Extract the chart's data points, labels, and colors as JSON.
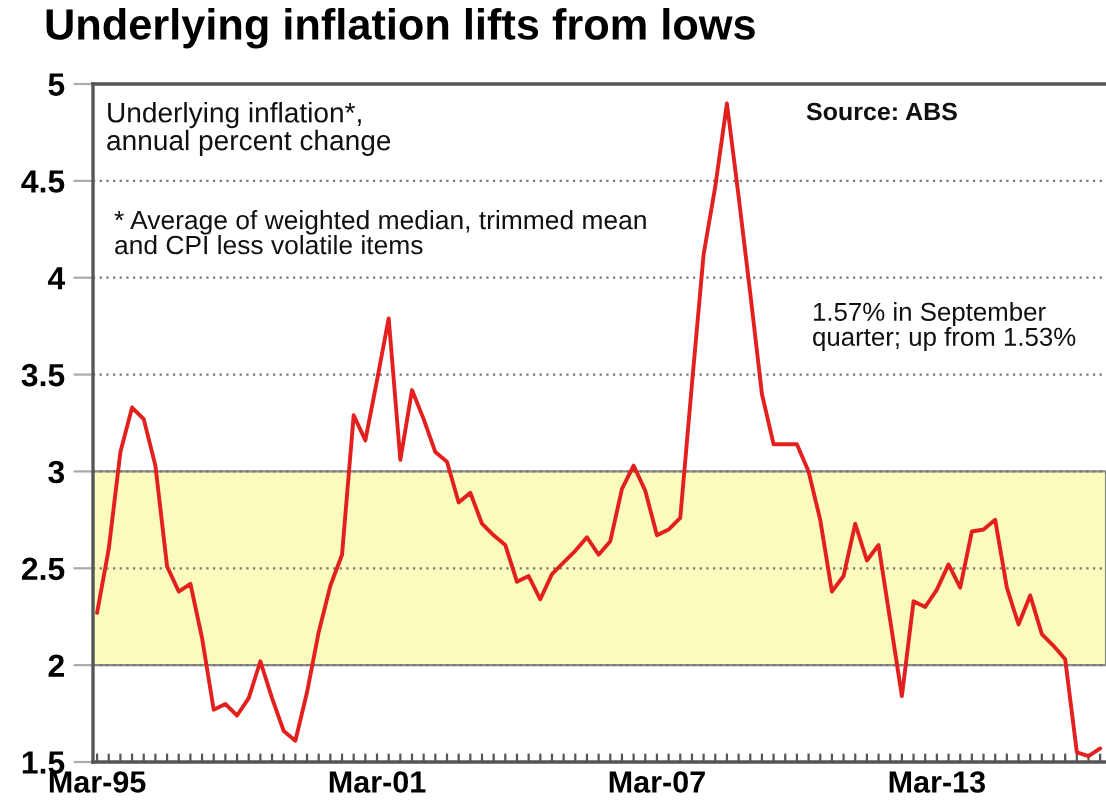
{
  "chart_data": {
    "type": "line",
    "title": "Underlying inflation lifts from lows",
    "annotations": [
      "Underlying inflation*,\nannual percent change",
      "* Average of weighted median, trimmed mean\nand CPI less volatile items",
      "Source: ABS",
      "1.57% in September\nquarter; up from 1.53%"
    ],
    "categories": [
      "Mar-95",
      null,
      null,
      null,
      null,
      null,
      null,
      null,
      null,
      null,
      null,
      null,
      null,
      null,
      null,
      null,
      null,
      null,
      null,
      null,
      null,
      null,
      null,
      null,
      "Mar-01",
      null,
      null,
      null,
      null,
      null,
      null,
      null,
      null,
      null,
      null,
      null,
      null,
      null,
      null,
      null,
      null,
      null,
      null,
      null,
      null,
      null,
      null,
      null,
      "Mar-07",
      null,
      null,
      null,
      null,
      null,
      null,
      null,
      null,
      null,
      null,
      null,
      null,
      null,
      null,
      null,
      null,
      null,
      null,
      null,
      null,
      null,
      null,
      null,
      "Mar-13",
      null,
      null,
      null,
      null,
      null,
      null,
      null,
      null,
      null,
      null,
      null,
      null,
      null,
      null
    ],
    "series": [
      {
        "color": "#e3201e",
        "values": [
          2.27,
          2.6,
          3.1,
          3.33,
          3.27,
          3.03,
          2.51,
          2.38,
          2.42,
          2.14,
          1.77,
          1.8,
          1.74,
          1.83,
          2.02,
          1.83,
          1.66,
          1.61,
          1.86,
          2.17,
          2.41,
          2.57,
          3.29,
          3.16,
          3.47,
          3.79,
          3.06,
          3.42,
          3.27,
          3.1,
          3.05,
          2.84,
          2.89,
          2.73,
          2.67,
          2.62,
          2.43,
          2.46,
          2.34,
          2.47,
          2.53,
          2.59,
          2.66,
          2.57,
          2.64,
          2.91,
          3.03,
          2.9,
          2.67,
          2.7,
          2.76,
          3.45,
          4.12,
          4.47,
          4.9,
          4.42,
          3.92,
          3.4,
          3.14,
          3.14,
          3.14,
          3.0,
          2.75,
          2.38,
          2.46,
          2.73,
          2.54,
          2.62,
          2.23,
          1.84,
          2.33,
          2.3,
          2.39,
          2.52,
          2.4,
          2.69,
          2.7,
          2.75,
          2.4,
          2.21,
          2.36,
          2.16,
          2.1,
          2.03,
          1.55,
          1.53,
          1.57
        ]
      }
    ],
    "ylim": [
      1.5,
      5
    ],
    "yticks": [
      1.5,
      2,
      2.5,
      3,
      3.5,
      4,
      4.5,
      5
    ],
    "bands": [
      {
        "axis": "y",
        "from": 2,
        "to": 3,
        "color": "#fbfbbd"
      }
    ],
    "grid": "y",
    "marker": "none",
    "line_style": "solid"
  }
}
